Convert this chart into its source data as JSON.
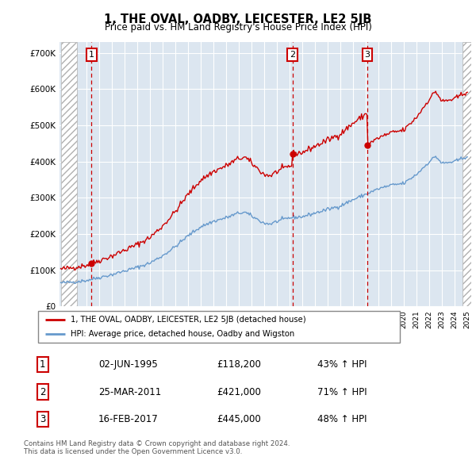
{
  "title": "1, THE OVAL, OADBY, LEICESTER, LE2 5JB",
  "subtitle": "Price paid vs. HM Land Registry's House Price Index (HPI)",
  "ytick_values": [
    0,
    100000,
    200000,
    300000,
    400000,
    500000,
    600000,
    700000
  ],
  "ylim": [
    0,
    730000
  ],
  "sale_year_vals": [
    1995.42,
    2011.23,
    2017.12
  ],
  "sale_prices": [
    118200,
    421000,
    445000
  ],
  "sale_labels": [
    "1",
    "2",
    "3"
  ],
  "sale_info": [
    {
      "num": "1",
      "date": "02-JUN-1995",
      "price": "£118,200",
      "change": "43% ↑ HPI"
    },
    {
      "num": "2",
      "date": "25-MAR-2011",
      "price": "£421,000",
      "change": "71% ↑ HPI"
    },
    {
      "num": "3",
      "date": "16-FEB-2017",
      "price": "£445,000",
      "change": "48% ↑ HPI"
    }
  ],
  "legend_entries": [
    "1, THE OVAL, OADBY, LEICESTER, LE2 5JB (detached house)",
    "HPI: Average price, detached house, Oadby and Wigston"
  ],
  "footer": "Contains HM Land Registry data © Crown copyright and database right 2024.\nThis data is licensed under the Open Government Licence v3.0.",
  "red_color": "#cc0000",
  "blue_color": "#6699cc",
  "bg_color": "#dce6f0",
  "x_start_year": 1993,
  "x_end_year": 2025,
  "hpi_base_x": [
    1993,
    1994,
    1995,
    1996,
    1997,
    1998,
    1999,
    2000,
    2001,
    2002,
    2003,
    2004,
    2005,
    2006,
    2007,
    2007.5,
    2008,
    2009,
    2009.5,
    2010,
    2011,
    2012,
    2013,
    2014,
    2015,
    2016,
    2017,
    2018,
    2019,
    2020,
    2021,
    2022,
    2022.5,
    2023,
    2024,
    2025
  ],
  "hpi_base_y": [
    65000,
    68000,
    72000,
    80000,
    88000,
    98000,
    108000,
    120000,
    140000,
    165000,
    195000,
    220000,
    235000,
    245000,
    258000,
    260000,
    250000,
    230000,
    228000,
    235000,
    245000,
    248000,
    258000,
    268000,
    278000,
    295000,
    310000,
    325000,
    335000,
    340000,
    365000,
    400000,
    415000,
    395000,
    400000,
    415000
  ]
}
